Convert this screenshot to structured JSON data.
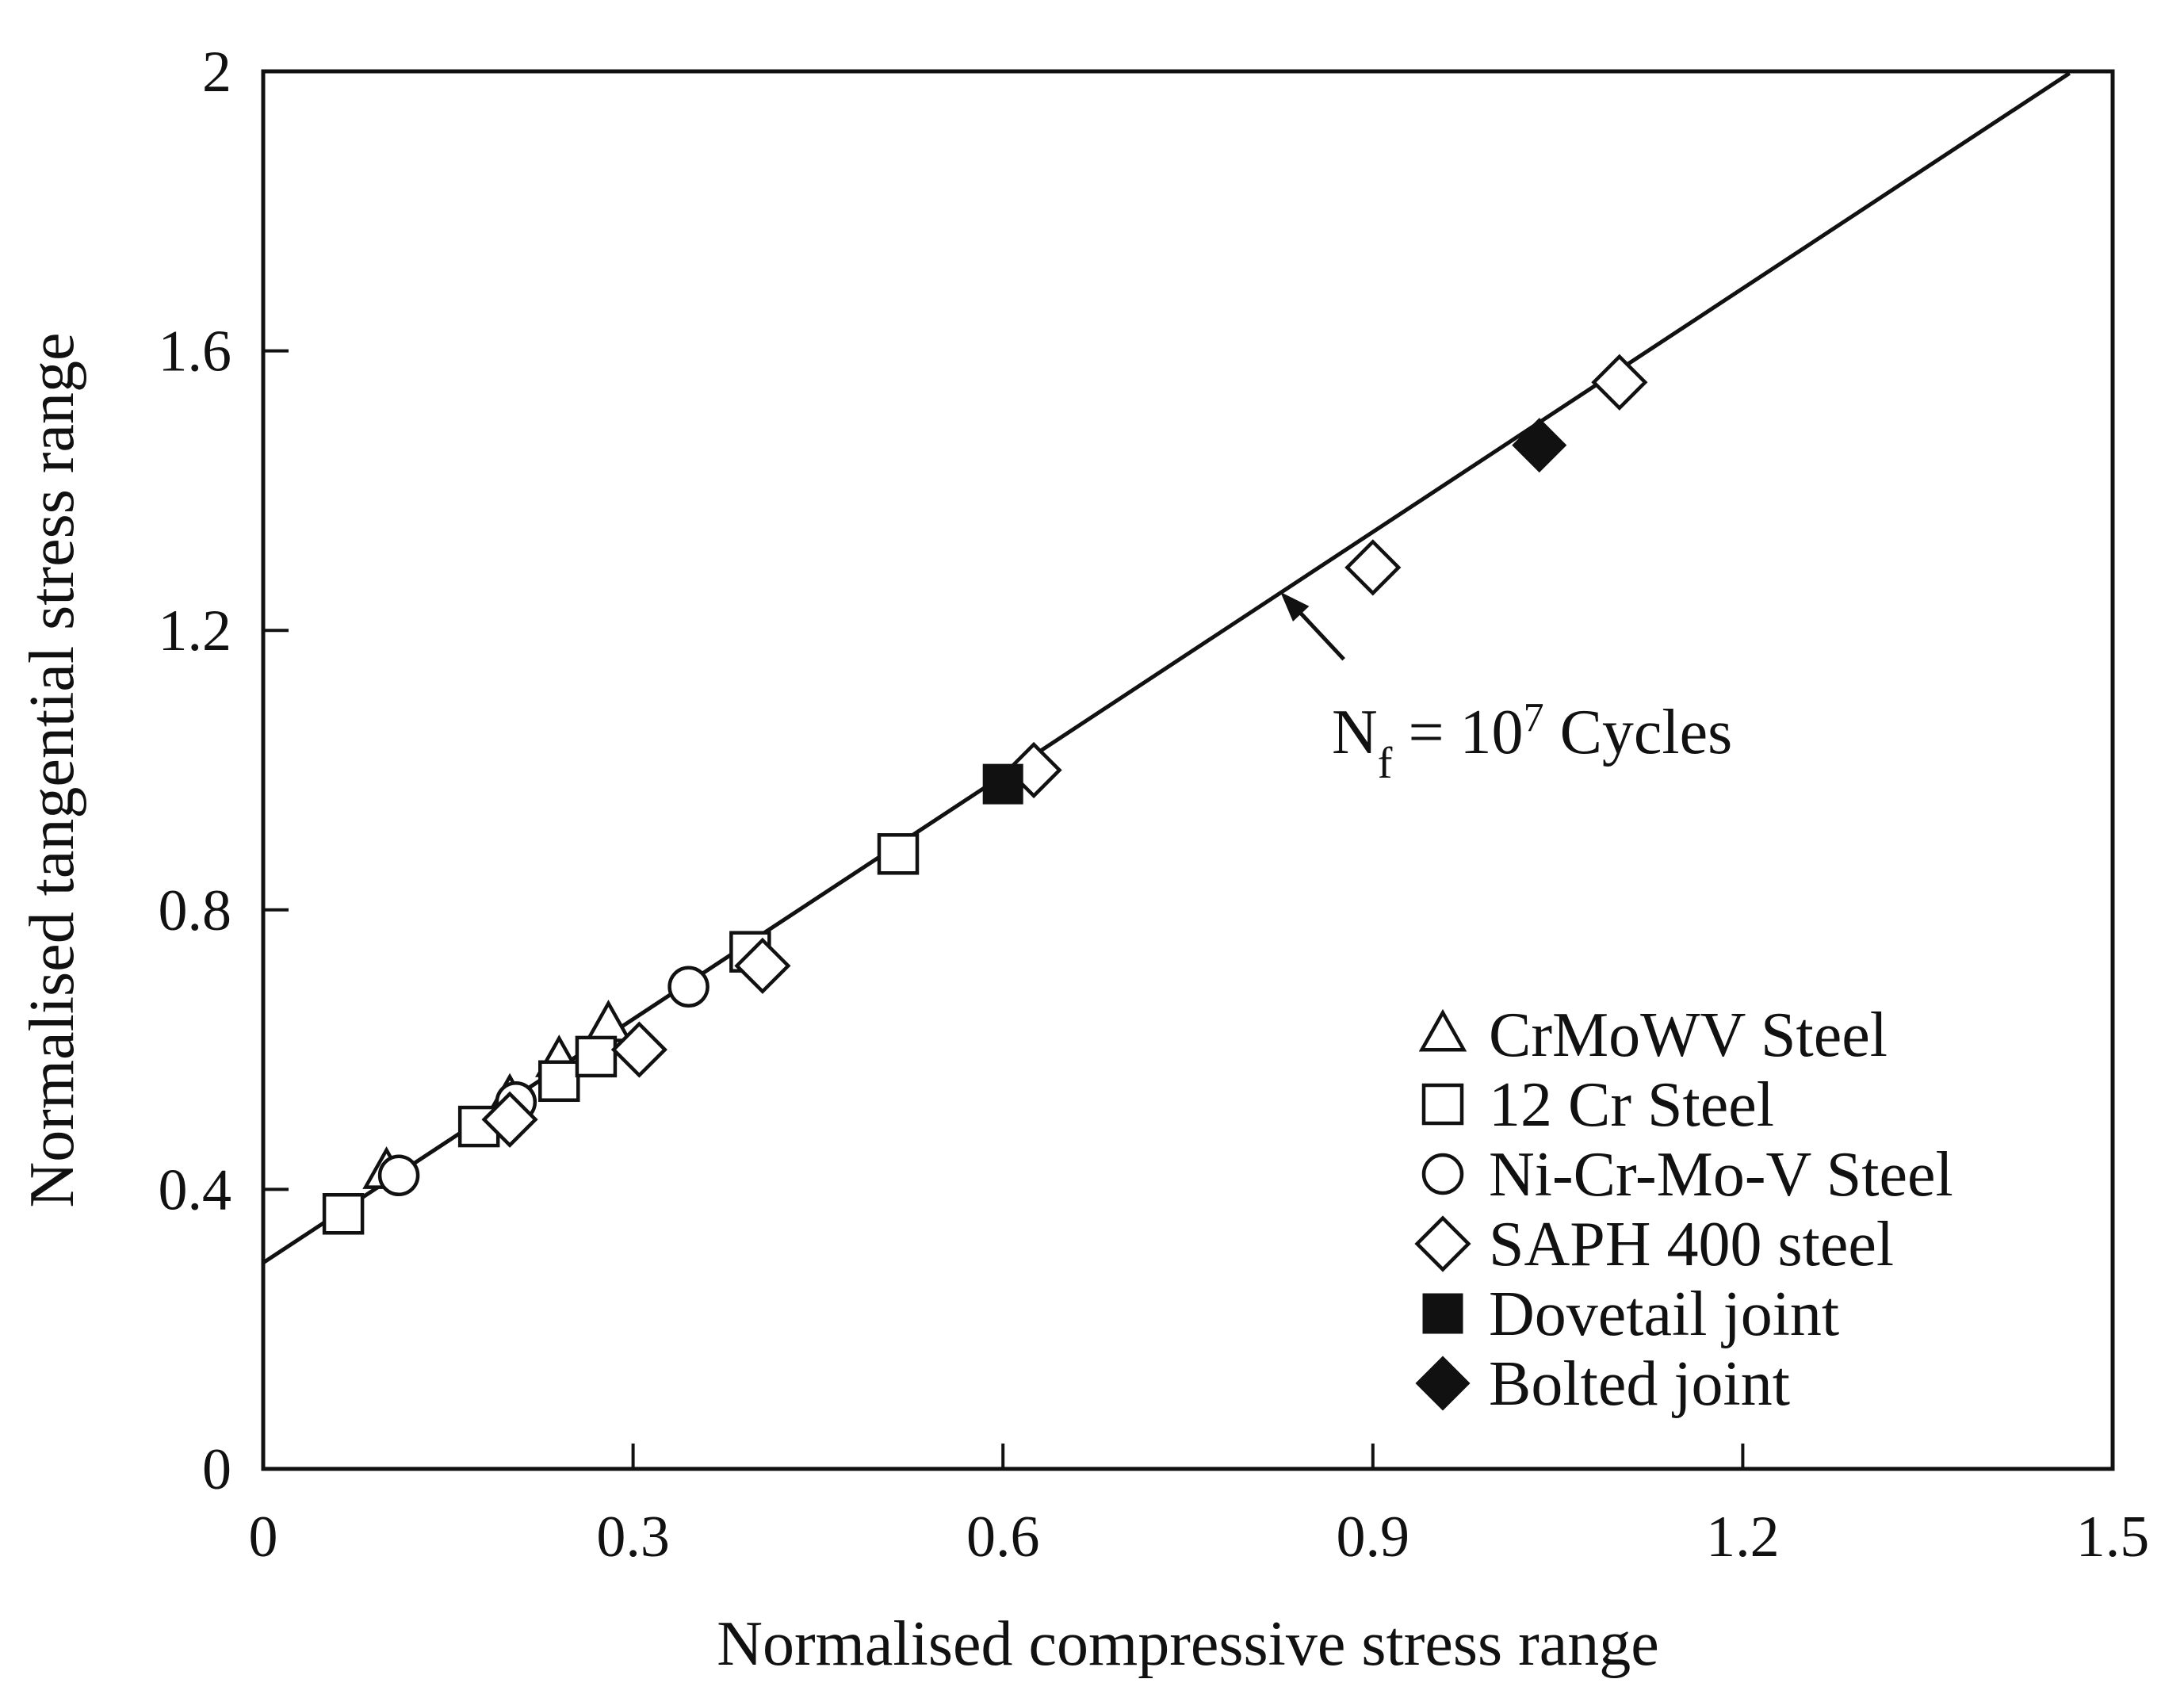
{
  "chart_data": {
    "type": "scatter",
    "title": "",
    "xlabel": "Normalised compressive stress range",
    "ylabel": "Normalised tangential stress range",
    "xlim": [
      0,
      1.5
    ],
    "ylim": [
      0,
      2
    ],
    "xticks": [
      0,
      0.3,
      0.6,
      0.9,
      1.2,
      1.5
    ],
    "yticks": [
      0,
      0.4,
      0.8,
      1.2,
      1.6,
      2
    ],
    "xtick_labels": [
      "0",
      "0.3",
      "0.6",
      "0.9",
      "1.2",
      "1.5"
    ],
    "ytick_labels": [
      "0",
      "0.4",
      "0.8",
      "1.2",
      "1.6",
      "2"
    ],
    "grid": false,
    "legend_position": "bottom-right",
    "fit_line": {
      "label": "Nf = 10^7 Cycles",
      "intercept": 0.295,
      "slope": 1.162,
      "x_range": [
        0,
        1.465
      ]
    },
    "annotation": {
      "text_main": "N",
      "text_sub": "f",
      "text_eq": " = 10",
      "text_sup": "7",
      "text_tail": " Cycles",
      "points_to": [
        0.825,
        1.255
      ]
    },
    "series": [
      {
        "name": "CrMoWV Steel",
        "marker": "triangle-open",
        "points": [
          [
            0.1,
            0.425
          ],
          [
            0.2,
            0.53
          ],
          [
            0.24,
            0.585
          ],
          [
            0.28,
            0.635
          ]
        ]
      },
      {
        "name": "12 Cr Steel",
        "marker": "square-open",
        "points": [
          [
            0.065,
            0.365
          ],
          [
            0.175,
            0.49
          ],
          [
            0.24,
            0.555
          ],
          [
            0.27,
            0.59
          ],
          [
            0.395,
            0.74
          ],
          [
            0.515,
            0.88
          ]
        ]
      },
      {
        "name": "Ni-Cr-Mo-V Steel",
        "marker": "circle-open",
        "points": [
          [
            0.11,
            0.42
          ],
          [
            0.205,
            0.525
          ],
          [
            0.345,
            0.69
          ]
        ]
      },
      {
        "name": "SAPH 400 steel",
        "marker": "diamond-open",
        "points": [
          [
            0.2,
            0.5
          ],
          [
            0.305,
            0.6
          ],
          [
            0.405,
            0.72
          ],
          [
            0.625,
            1.0
          ],
          [
            0.9,
            1.29
          ],
          [
            1.1,
            1.555
          ]
        ]
      },
      {
        "name": "Dovetail joint",
        "marker": "square-filled",
        "points": [
          [
            0.6,
            0.98
          ]
        ]
      },
      {
        "name": "Bolted joint",
        "marker": "diamond-filled",
        "points": [
          [
            1.035,
            1.465
          ]
        ]
      }
    ]
  },
  "colors": {
    "ink": "#111111",
    "background": "#ffffff"
  }
}
